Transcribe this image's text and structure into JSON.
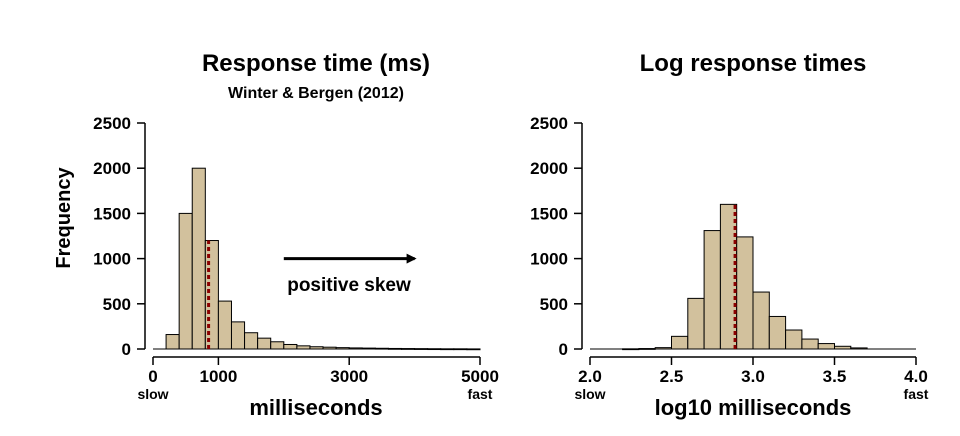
{
  "colors": {
    "bar_fill": "#d2c19d",
    "mean_line": "#8b0000"
  },
  "chart_data": [
    {
      "type": "bar",
      "title": "Response time (ms)",
      "subtitle": "Winter & Bergen (2012)",
      "xlabel": "milliseconds",
      "ylabel": "Frequency",
      "xlim": [
        0,
        5000
      ],
      "ylim": [
        0,
        2500
      ],
      "x_ticks": [
        0,
        1000,
        3000,
        5000
      ],
      "x_tick_labels": [
        "0",
        "1000",
        "3000",
        "5000"
      ],
      "y_ticks": [
        0,
        500,
        1000,
        1500,
        2000,
        2500
      ],
      "y_tick_labels": [
        "0",
        "500",
        "1000",
        "1500",
        "2000",
        "2500"
      ],
      "edge_labels": {
        "left": "slow",
        "right": "fast"
      },
      "annotation": {
        "text": "positive skew",
        "arrow_from": 2000,
        "arrow_to": 4000,
        "arrow_y": 1000
      },
      "mean_line_x": 850,
      "bins": {
        "start": 0,
        "width": 200
      },
      "values": [
        0,
        160,
        1500,
        2000,
        1200,
        530,
        300,
        180,
        120,
        80,
        50,
        35,
        25,
        20,
        15,
        12,
        10,
        8,
        6,
        5,
        4,
        3,
        2,
        2,
        1
      ]
    },
    {
      "type": "bar",
      "title": "Log response times",
      "xlabel": "log10 milliseconds",
      "xlim": [
        2.0,
        4.0
      ],
      "ylim": [
        0,
        2500
      ],
      "x_ticks": [
        2.0,
        2.5,
        3.0,
        3.5,
        4.0
      ],
      "x_tick_labels": [
        "2.0",
        "2.5",
        "3.0",
        "3.5",
        "4.0"
      ],
      "y_ticks": [
        0,
        500,
        1000,
        1500,
        2000,
        2500
      ],
      "y_tick_labels": [
        "0",
        "500",
        "1000",
        "1500",
        "2000",
        "2500"
      ],
      "edge_labels": {
        "left": "slow",
        "right": "fast"
      },
      "mean_line_x": 2.89,
      "bins": {
        "start": 2.0,
        "width": 0.1
      },
      "values": [
        0,
        0,
        2,
        5,
        15,
        140,
        560,
        1310,
        1600,
        1240,
        630,
        360,
        210,
        110,
        60,
        30,
        12,
        0,
        0,
        0
      ]
    }
  ]
}
